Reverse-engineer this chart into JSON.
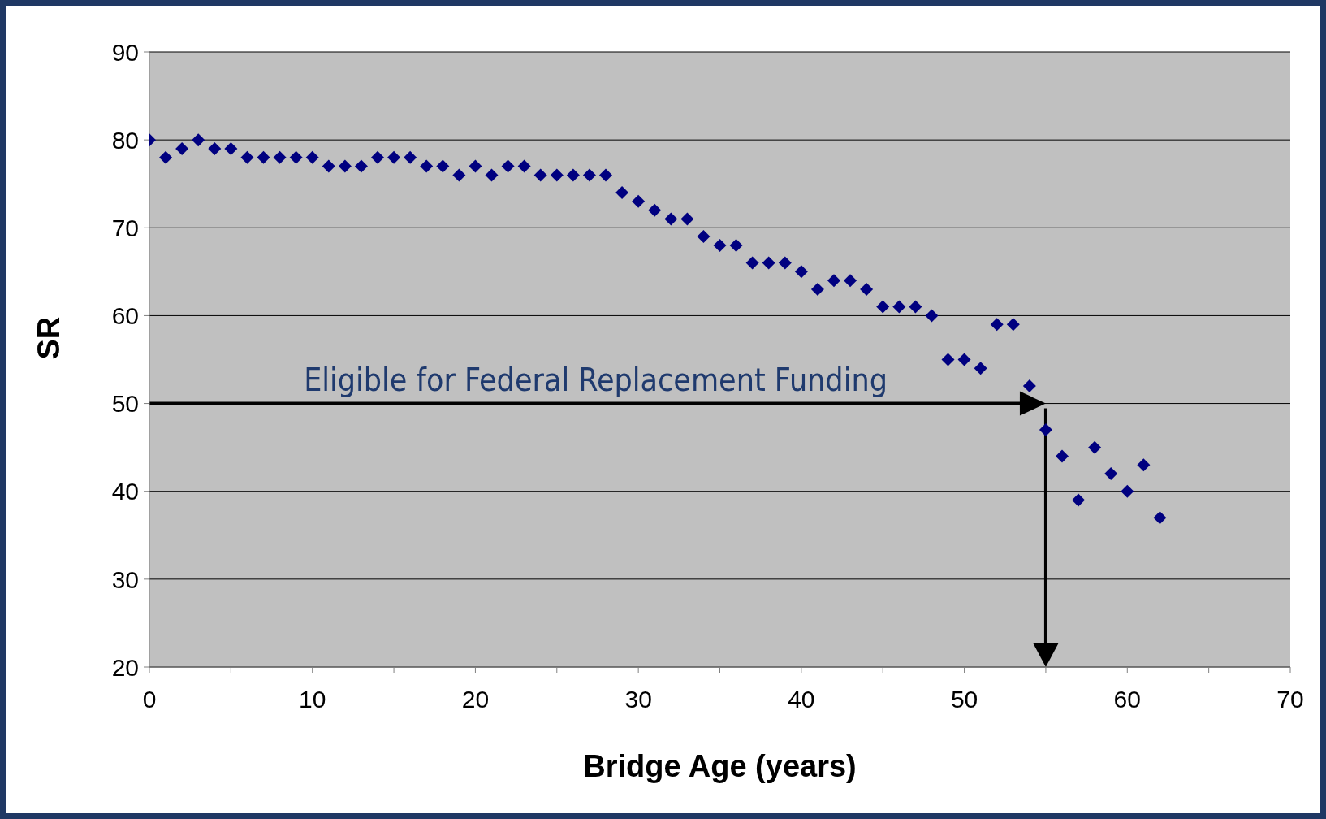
{
  "chart_data": {
    "type": "scatter",
    "xlabel": "Bridge Age (years)",
    "ylabel": "SR",
    "x": [
      0,
      1,
      2,
      3,
      4,
      5,
      6,
      7,
      8,
      9,
      10,
      11,
      12,
      13,
      14,
      15,
      16,
      17,
      18,
      19,
      20,
      21,
      22,
      23,
      24,
      25,
      26,
      27,
      28,
      29,
      30,
      31,
      32,
      33,
      34,
      35,
      36,
      37,
      38,
      39,
      40,
      41,
      42,
      43,
      44,
      45,
      46,
      47,
      48,
      49,
      50,
      51,
      52,
      53,
      54,
      55,
      56,
      57,
      58,
      59,
      60,
      61,
      62
    ],
    "values": [
      80,
      78,
      79,
      80,
      79,
      79,
      78,
      78,
      78,
      78,
      78,
      77,
      77,
      77,
      78,
      78,
      78,
      77,
      77,
      76,
      77,
      76,
      77,
      77,
      76,
      76,
      76,
      76,
      76,
      74,
      73,
      72,
      71,
      71,
      69,
      68,
      68,
      66,
      66,
      66,
      65,
      63,
      64,
      64,
      63,
      61,
      61,
      61,
      60,
      55,
      55,
      54,
      59,
      59,
      52,
      47,
      44,
      39,
      45,
      42,
      40,
      43,
      37
    ],
    "color": "#000080",
    "marker": "diamond",
    "xlim": [
      0,
      70
    ],
    "xticks": [
      0,
      {
        "value": 5,
        "label": null
      },
      10,
      {
        "value": 15,
        "label": null
      },
      20,
      {
        "value": 25,
        "label": null
      },
      30,
      {
        "value": 35,
        "label": null
      },
      40,
      {
        "value": 45,
        "label": null
      },
      50,
      {
        "value": 55,
        "label": null
      },
      60,
      {
        "value": 65,
        "label": null
      },
      70
    ],
    "ylim": [
      20,
      90
    ],
    "yticks": [
      20,
      30,
      40,
      50,
      60,
      70,
      80,
      90
    ],
    "grid": "y",
    "ref_lines": [
      {
        "axis": "y",
        "value": 50,
        "label": "Eligible for Federal Replacement Funding",
        "color": "#000000"
      },
      {
        "axis": "x",
        "value": 55,
        "color": "#000000"
      }
    ]
  }
}
